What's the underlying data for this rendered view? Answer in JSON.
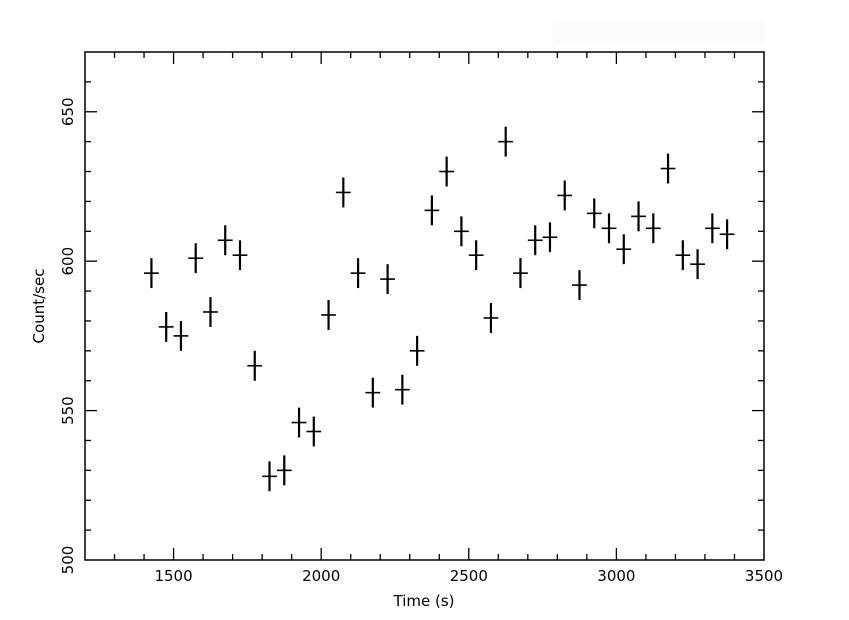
{
  "chart_data": {
    "type": "scatter",
    "title": "",
    "xlabel": "Time (s)",
    "ylabel": "Count/sec",
    "xlim": [
      1200,
      3500
    ],
    "ylim": [
      500,
      670
    ],
    "x_ticks": [
      1500,
      2000,
      2500,
      3000,
      3500
    ],
    "y_ticks": [
      500,
      550,
      600,
      650
    ],
    "x_error": 25,
    "y_error": 5,
    "grid": false,
    "legend": "none",
    "color": "#000000",
    "points": [
      {
        "x": 1425,
        "y": 596
      },
      {
        "x": 1475,
        "y": 578
      },
      {
        "x": 1525,
        "y": 575
      },
      {
        "x": 1575,
        "y": 601
      },
      {
        "x": 1625,
        "y": 583
      },
      {
        "x": 1675,
        "y": 607
      },
      {
        "x": 1725,
        "y": 602
      },
      {
        "x": 1775,
        "y": 565
      },
      {
        "x": 1825,
        "y": 528
      },
      {
        "x": 1875,
        "y": 530
      },
      {
        "x": 1925,
        "y": 546
      },
      {
        "x": 1975,
        "y": 543
      },
      {
        "x": 2025,
        "y": 582
      },
      {
        "x": 2075,
        "y": 623
      },
      {
        "x": 2125,
        "y": 596
      },
      {
        "x": 2175,
        "y": 556
      },
      {
        "x": 2225,
        "y": 594
      },
      {
        "x": 2275,
        "y": 557
      },
      {
        "x": 2325,
        "y": 570
      },
      {
        "x": 2375,
        "y": 617
      },
      {
        "x": 2425,
        "y": 630
      },
      {
        "x": 2475,
        "y": 610
      },
      {
        "x": 2525,
        "y": 602
      },
      {
        "x": 2575,
        "y": 581
      },
      {
        "x": 2625,
        "y": 640
      },
      {
        "x": 2675,
        "y": 596
      },
      {
        "x": 2725,
        "y": 607
      },
      {
        "x": 2775,
        "y": 608
      },
      {
        "x": 2825,
        "y": 622
      },
      {
        "x": 2875,
        "y": 592
      },
      {
        "x": 2925,
        "y": 616
      },
      {
        "x": 2975,
        "y": 611
      },
      {
        "x": 3025,
        "y": 604
      },
      {
        "x": 3075,
        "y": 615
      },
      {
        "x": 3125,
        "y": 611
      },
      {
        "x": 3175,
        "y": 631
      },
      {
        "x": 3225,
        "y": 602
      },
      {
        "x": 3275,
        "y": 599
      },
      {
        "x": 3325,
        "y": 611
      },
      {
        "x": 3375,
        "y": 609
      }
    ]
  }
}
